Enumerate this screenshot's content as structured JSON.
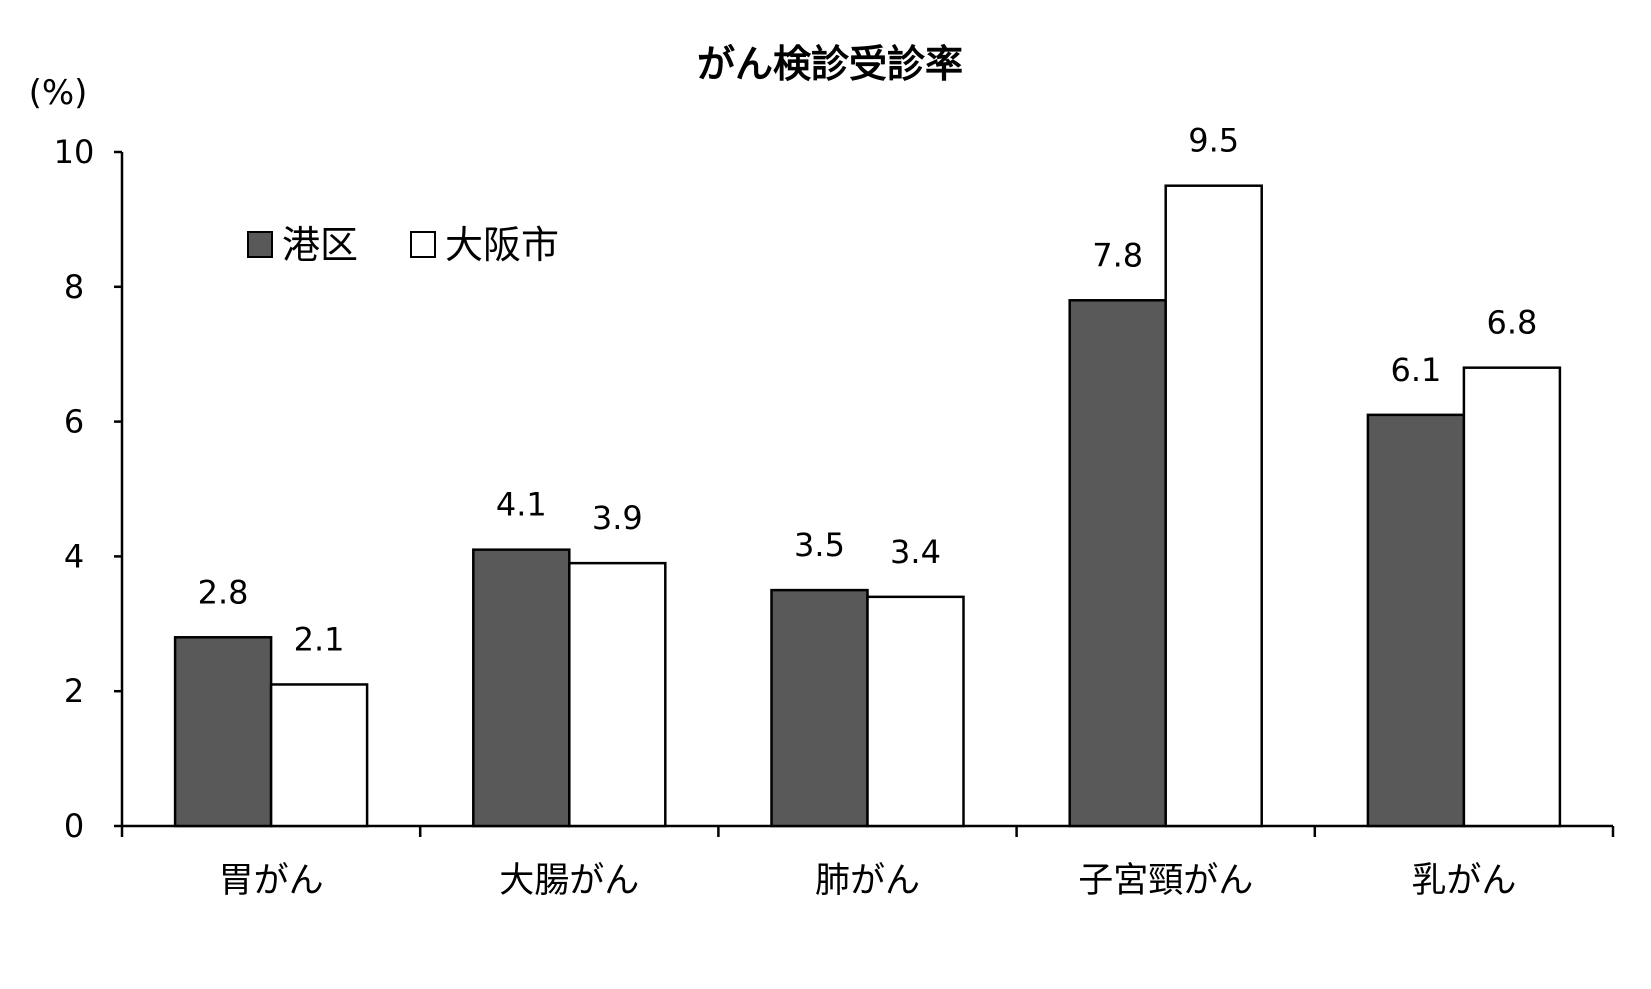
{
  "chart_data": {
    "type": "bar",
    "title": "がん検診受診率",
    "ylabel": "(%)",
    "xlabel": "",
    "ylim": [
      0,
      10
    ],
    "yticks": [
      0,
      2,
      4,
      6,
      8,
      10
    ],
    "grid": false,
    "legend_position": "top-left",
    "categories": [
      "胃がん",
      "大腸がん",
      "肺がん",
      "子宮頸がん",
      "乳がん"
    ],
    "series": [
      {
        "name": "港区",
        "values": [
          2.8,
          4.1,
          3.5,
          7.8,
          6.1
        ],
        "labels": [
          "2.8",
          "4.1",
          "3.5",
          "7.8",
          "6.1"
        ],
        "color": "#595959"
      },
      {
        "name": "大阪市",
        "values": [
          2.1,
          3.9,
          3.4,
          9.5,
          6.8
        ],
        "labels": [
          "2.1",
          "3.9",
          "3.4",
          "9.5",
          "6.8"
        ],
        "color": "#ffffff"
      }
    ]
  }
}
